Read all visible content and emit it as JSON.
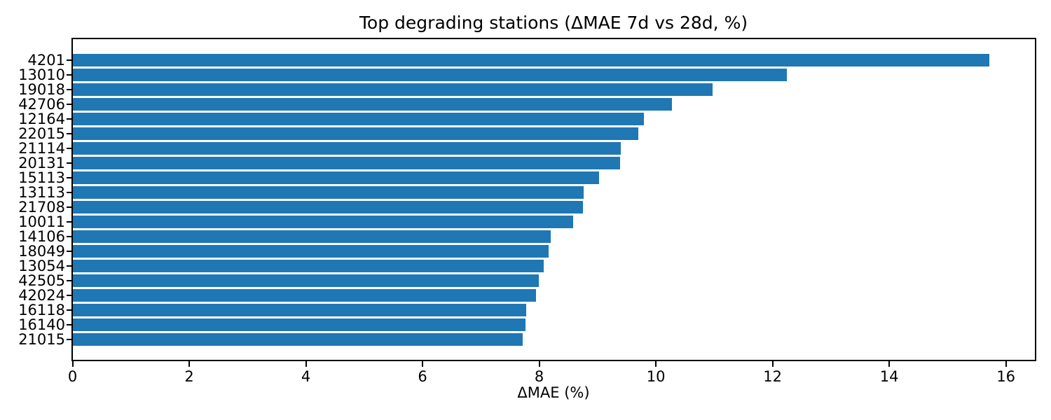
{
  "chart_data": {
    "type": "bar",
    "orientation": "horizontal",
    "title": "Top degrading stations (ΔMAE 7d vs 28d, %)",
    "xlabel": "ΔMAE (%)",
    "ylabel": "",
    "categories": [
      "4201",
      "13010",
      "19018",
      "42706",
      "12164",
      "22015",
      "21114",
      "20131",
      "15113",
      "13113",
      "21708",
      "10011",
      "14106",
      "18049",
      "13054",
      "42505",
      "42024",
      "16118",
      "16140",
      "21015"
    ],
    "values": [
      15.72,
      12.25,
      10.97,
      10.27,
      9.79,
      9.7,
      9.4,
      9.39,
      9.02,
      8.76,
      8.75,
      8.58,
      8.2,
      8.16,
      8.08,
      7.99,
      7.94,
      7.78,
      7.77,
      7.72
    ],
    "xticks": [
      0,
      2,
      4,
      6,
      8,
      10,
      12,
      14,
      16
    ],
    "xlim": [
      0,
      16.49
    ],
    "bar_color": "#1f77b4",
    "axis_color": "#000000",
    "grid": false,
    "legend": null
  }
}
